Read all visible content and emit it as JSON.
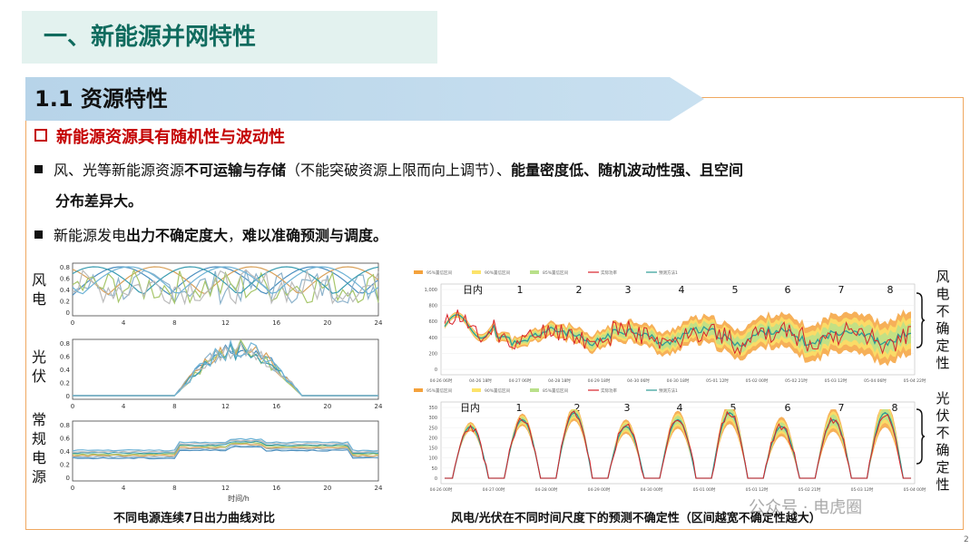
{
  "section": {
    "title": "一、新能源并网特性"
  },
  "subsection": {
    "title": "1.1 资源特性"
  },
  "point": {
    "title": "新能源资源具有随机性与波动性"
  },
  "bullet1": {
    "p1": "风、光等新能源资源",
    "p2": "不可运输与存储",
    "p3": "（不能突破资源上限而向上调节）、",
    "p4": "能量密度低、随机波动性强、且空间",
    "p5": "分布差异大。"
  },
  "bullet2": {
    "p1": "新能源发电",
    "p2": "出力不确定度大",
    "p3": "，",
    "p4": "难以准确预测与调度。"
  },
  "left_charts": {
    "labels": {
      "wind": "风电",
      "solar": "光伏",
      "conv": "常规电源"
    },
    "x_ticks": [
      "0",
      "4",
      "8",
      "12",
      "16",
      "20",
      "24"
    ],
    "y_ticks": [
      "0.8",
      "0.6",
      "0.4",
      "0.2",
      "0"
    ],
    "xlabel": "时间/h",
    "caption": "不同电源连续7日出力曲线对比"
  },
  "right_charts": {
    "wind_label": "风电不确定性",
    "solar_label": "光伏不确定性",
    "day_labels": [
      "日内",
      "1",
      "2",
      "3",
      "4",
      "5",
      "6",
      "7",
      "8"
    ],
    "wind_y_ticks": [
      "1,000",
      "800",
      "600",
      "400",
      "200",
      "0"
    ],
    "solar_y_ticks": [
      "350",
      "300",
      "250",
      "200",
      "150",
      "100",
      "50",
      "0"
    ],
    "wind_x_ticks": [
      "04-26 06时",
      "04-26 18时",
      "04-27 06时",
      "04-28 18时",
      "04-29 18时",
      "04-30 06时",
      "04-30 18时",
      "05-01 12时",
      "05-02 00时",
      "05-02 21时",
      "05-03 12时",
      "05-04 06时",
      "05-04 22时"
    ],
    "solar_x_ticks": [
      "04-26 00时",
      "04-27 00时",
      "04-28 00时",
      "04-29 00时",
      "04-30 00时",
      "05-01 00时",
      "05-01 12时",
      "05-02 21时",
      "05-03 12时",
      "05-04 00时"
    ],
    "caption": "风电/光伏在不同时间尺度下的预测不确定性（区间越宽不确定性越大）"
  },
  "colors": {
    "band95": "#f4a23c",
    "band90": "#fce36a",
    "band85": "#b9e08a",
    "actual": "#d9232b",
    "forecast": "#2f9c96"
  },
  "watermark": "公众号 · 电虎圈",
  "page_number": "2"
}
